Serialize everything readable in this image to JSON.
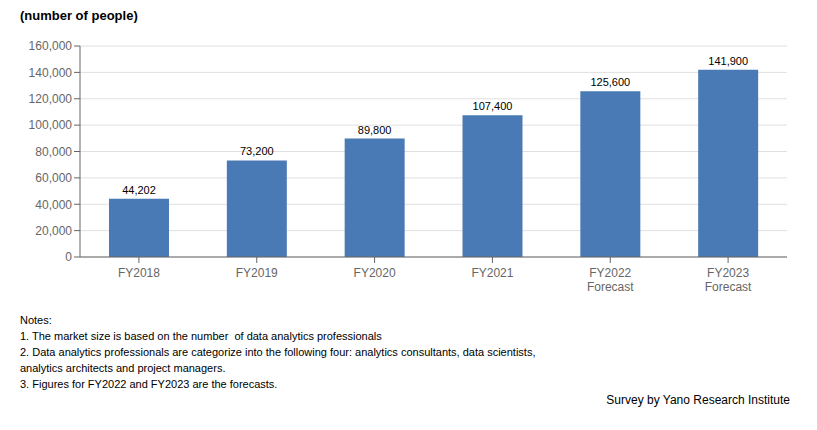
{
  "chart_data": {
    "type": "bar",
    "ylabel": "(number of people)",
    "categories": [
      "FY2018",
      "FY2019",
      "FY2020",
      "FY2021",
      "FY2022\nForecast",
      "FY2023\nForecast"
    ],
    "values": [
      44202,
      73200,
      89800,
      107400,
      125600,
      141900
    ],
    "value_labels": [
      "44,202",
      "73,200",
      "89,800",
      "107,400",
      "125,600",
      "141,900"
    ],
    "data_labels": true,
    "color": "#4a7ab5",
    "ylim": [
      0,
      160000
    ],
    "yticks": [
      0,
      {
        "value": 20000,
        "label": "20,000"
      },
      {
        "value": 40000,
        "label": "40,000"
      },
      {
        "value": 60000,
        "label": "60,000"
      },
      {
        "value": 80000,
        "label": "80,000"
      },
      {
        "value": 100000,
        "label": "100,000"
      },
      {
        "value": 120000,
        "label": "120,000"
      },
      {
        "value": 140000,
        "label": "140,000"
      },
      {
        "value": 160000,
        "label": "160,000"
      }
    ],
    "grid": true,
    "annotations": [
      "Notes:",
      "1. The market size is based on the number  of data analytics professionals",
      "2. Data analytics professionals are categorize into the following four: analytics consultants, data scientists,",
      "analytics architects and project managers.",
      "3. Figures for FY2022 and FY2023 are the forecasts.",
      "Survey by Yano Research Institute"
    ]
  }
}
